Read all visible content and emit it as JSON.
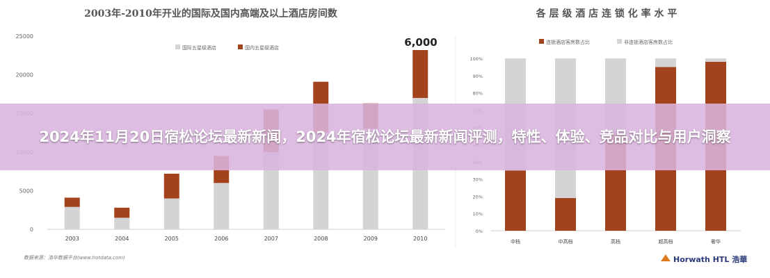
{
  "banner": {
    "title": "2024年11月20日宿松论坛最新新闻，2024年宿松论坛最新新闻评测，特性、体验、竞品对比与用户洞察"
  },
  "left_chart": {
    "title": "2003年-2010年开业的国际及国内高端及以上酒店房间数",
    "source": "数据来源：浩华数据平台(www.hotdata.com)",
    "annotation": "6,000"
  },
  "right_chart": {
    "title": "各 层 级 酒 店 连 锁 化 率 水 平",
    "brand": "Horwath HTL 浩華"
  },
  "colors": {
    "grey": "#d4d4d4",
    "rust": "#a3431e"
  },
  "chart_data": [
    {
      "type": "bar",
      "stacked": true,
      "title": "2003年-2010年开业的国际及国内高端及以上酒店房间数",
      "categories": [
        "2003",
        "2004",
        "2005",
        "2006",
        "2007",
        "2008",
        "2009",
        "2010"
      ],
      "series": [
        {
          "name": "国际五星级酒店",
          "color": "#d4d4d4",
          "values": [
            2900,
            1500,
            4000,
            6000,
            10000,
            12500,
            13000,
            17000
          ]
        },
        {
          "name": "国内五星级酒店",
          "color": "#a3431e",
          "values": [
            1200,
            1300,
            3200,
            3500,
            5500,
            6600,
            3300,
            6200
          ]
        }
      ],
      "yticks": [
        0,
        5000,
        10000,
        15000,
        20000,
        25000
      ],
      "ylim": [
        0,
        25000
      ],
      "legend": "top-center",
      "grid": false
    },
    {
      "type": "bar",
      "stacked": true,
      "percent": true,
      "title": "各 层 级 酒 店 连 锁 化 率 水 平",
      "categories": [
        "中档",
        "中高档",
        "高档",
        "超高档",
        "奢华"
      ],
      "series": [
        {
          "name": "连锁酒店客房数占比",
          "color": "#a3431e",
          "values": [
            35,
            19,
            56,
            95,
            98
          ]
        },
        {
          "name": "非连锁酒店客房数占比",
          "color": "#d4d4d4",
          "values": [
            65,
            81,
            44,
            5,
            2
          ]
        }
      ],
      "yticks": [
        "0%",
        "10%",
        "20%",
        "30%",
        "40%",
        "50%",
        "60%",
        "70%",
        "80%",
        "90%",
        "100%"
      ],
      "ylim": [
        0,
        100
      ],
      "legend": "top-center",
      "grid": false
    }
  ]
}
